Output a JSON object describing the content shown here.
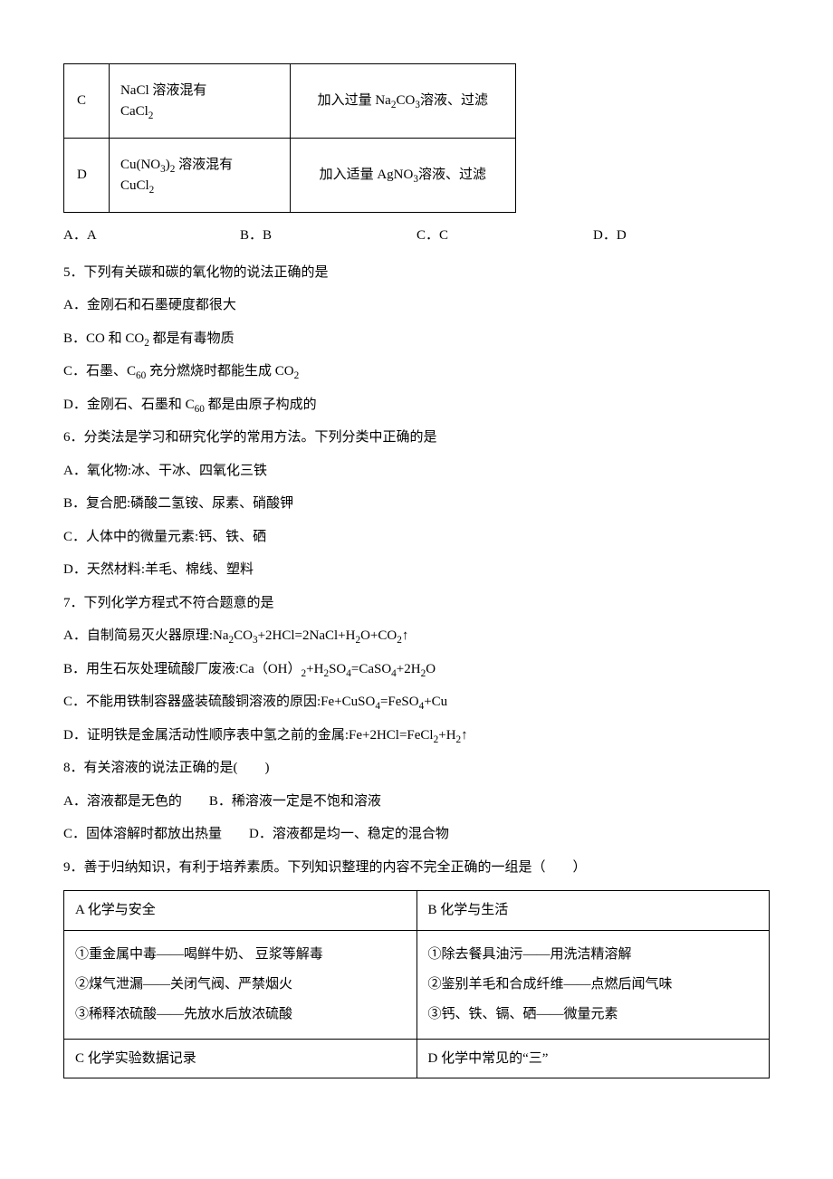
{
  "smallTable": {
    "rows": [
      {
        "label": "C",
        "mixture_html": "NaCl 溶液混有<br>CaCl<sub>2</sub>",
        "method_html": "加入过量 Na<sub>2</sub>CO<sub>3</sub>溶液、过滤"
      },
      {
        "label": "D",
        "mixture_html": "Cu(NO<sub>3</sub>)<sub>2</sub> 溶液混有<br>CuCl<sub>2</sub>",
        "method_html": "加入适量 AgNO<sub>3</sub>溶液、过滤"
      }
    ]
  },
  "options4": {
    "a": "A．A",
    "b": "B．B",
    "c": "C．C",
    "d": "D．D"
  },
  "q5": {
    "stem": "5．下列有关碳和碳的氧化物的说法正确的是",
    "a": "A．金刚石和石墨硬度都很大",
    "b_html": "B．CO 和 CO<sub>2</sub> 都是有毒物质",
    "c_html": "C．石墨、C<sub>60</sub> 充分燃烧时都能生成 CO<sub>2</sub>",
    "d_html": "D．金刚石、石墨和 C<sub>60</sub> 都是由原子构成的"
  },
  "q6": {
    "stem": "6．分类法是学习和研究化学的常用方法。下列分类中正确的是",
    "a": "A．氧化物:冰、干冰、四氧化三铁",
    "b": "B．复合肥:磷酸二氢铵、尿素、硝酸钾",
    "c": "C．人体中的微量元素:钙、铁、硒",
    "d": "D．天然材料:羊毛、棉线、塑料"
  },
  "q7": {
    "stem": "7．下列化学方程式不符合题意的是",
    "a_html": "A．自制简易灭火器原理:Na<sub>2</sub>CO<sub>3</sub>+2HCl=2NaCl+H<sub>2</sub>O+CO<sub>2</sub>↑",
    "b_html": "B．用生石灰处理硫酸厂废液:Ca（OH）<sub>2</sub>+H<sub>2</sub>SO<sub>4</sub>=CaSO<sub>4</sub>+2H<sub>2</sub>O",
    "c_html": "C．不能用铁制容器盛装硫酸铜溶液的原因:Fe+CuSO<sub>4</sub>=FeSO<sub>4</sub>+Cu",
    "d_html": "D．证明铁是金属活动性顺序表中氢之前的金属:Fe+2HCl=FeCl<sub>2</sub>+H<sub>2</sub>↑"
  },
  "q8": {
    "stem": "8．有关溶液的说法正确的是(　　)",
    "line1": "A．溶液都是无色的　　B．稀溶液一定是不饱和溶液",
    "line2": "C．固体溶解时都放出热量　　D．溶液都是均一、稳定的混合物"
  },
  "q9": {
    "stem": "9．善于归纳知识，有利于培养素质。下列知识整理的内容不完全正确的一组是（　　）"
  },
  "wideTable": {
    "row1": {
      "a": "A 化学与安全",
      "b": "B 化学与生活"
    },
    "row2": {
      "a_lines": [
        "①重金属中毒——喝鲜牛奶、 豆浆等解毒",
        "②煤气泄漏——关闭气阀、严禁烟火",
        "③稀释浓硫酸——先放水后放浓硫酸"
      ],
      "b_lines": [
        "①除去餐具油污——用洗洁精溶解",
        "②鉴别羊毛和合成纤维——点燃后闻气味",
        "③钙、铁、镉、硒——微量元素"
      ]
    },
    "row3": {
      "c": "C 化学实验数据记录",
      "d": "D 化学中常见的“三”"
    }
  }
}
